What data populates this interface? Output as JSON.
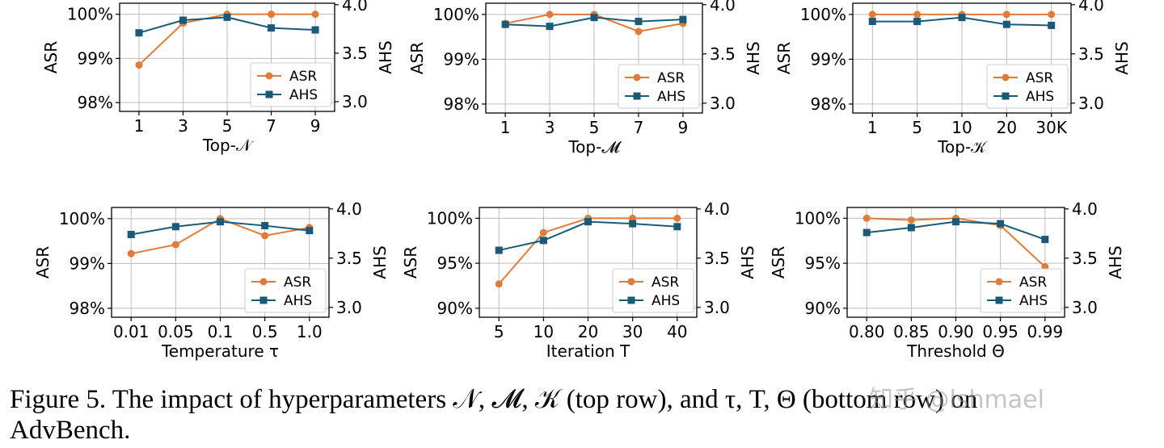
{
  "colors": {
    "asr": "#E07B39",
    "ahs": "#1A5A78",
    "grid": "#bdbdbd",
    "axis": "#000000"
  },
  "chart_data": [
    {
      "type": "line",
      "xlabel": "Top-𝒩",
      "ylabel_left": "ASR",
      "ylabel_right": "AHS",
      "categories": [
        "1",
        "3",
        "5",
        "7",
        "9"
      ],
      "y_left_ticks": [
        "98%",
        "99%",
        "100%"
      ],
      "y_left_range": [
        97.8,
        100.25
      ],
      "y_right_ticks": [
        "3.0",
        "3.5",
        "4.0"
      ],
      "y_right_range": [
        2.9,
        4.015
      ],
      "legend": "lower-right",
      "series": [
        {
          "name": "ASR",
          "axis": "left",
          "marker": "circle",
          "values": [
            98.85,
            99.8,
            100,
            100,
            100
          ]
        },
        {
          "name": "AHS",
          "axis": "right",
          "marker": "square",
          "values": [
            3.71,
            3.84,
            3.87,
            3.76,
            3.74
          ]
        }
      ]
    },
    {
      "type": "line",
      "xlabel": "Top-𝓜",
      "ylabel_left": "ASR",
      "ylabel_right": "AHS",
      "categories": [
        "1",
        "3",
        "5",
        "7",
        "9"
      ],
      "y_left_ticks": [
        "98%",
        "99%",
        "100%"
      ],
      "y_left_range": [
        97.8,
        100.25
      ],
      "y_right_ticks": [
        "3.0",
        "3.5",
        "4.0"
      ],
      "y_right_range": [
        2.9,
        4.015
      ],
      "legend": "lower-right",
      "series": [
        {
          "name": "ASR",
          "axis": "left",
          "marker": "circle",
          "values": [
            99.8,
            100,
            100,
            99.62,
            99.8
          ]
        },
        {
          "name": "AHS",
          "axis": "right",
          "marker": "square",
          "values": [
            3.8,
            3.78,
            3.87,
            3.83,
            3.85
          ]
        }
      ]
    },
    {
      "type": "line",
      "xlabel": "Top-𝒦",
      "ylabel_left": "ASR",
      "ylabel_right": "AHS",
      "categories": [
        "1",
        "5",
        "10",
        "20",
        "30K"
      ],
      "y_left_ticks": [
        "98%",
        "99%",
        "100%"
      ],
      "y_left_range": [
        97.8,
        100.25
      ],
      "y_right_ticks": [
        "3.0",
        "3.5",
        "4.0"
      ],
      "y_right_range": [
        2.9,
        4.015
      ],
      "legend": "lower-right",
      "series": [
        {
          "name": "ASR",
          "axis": "left",
          "marker": "circle",
          "values": [
            100,
            100,
            100,
            100,
            100
          ]
        },
        {
          "name": "AHS",
          "axis": "right",
          "marker": "square",
          "values": [
            3.83,
            3.83,
            3.87,
            3.8,
            3.79
          ]
        }
      ]
    },
    {
      "type": "line",
      "xlabel": "Temperature τ",
      "ylabel_left": "ASR",
      "ylabel_right": "AHS",
      "categories": [
        "0.01",
        "0.05",
        "0.1",
        "0.5",
        "1.0"
      ],
      "y_left_ticks": [
        "98%",
        "99%",
        "100%"
      ],
      "y_left_range": [
        97.8,
        100.25
      ],
      "y_right_ticks": [
        "3.0",
        "3.5",
        "4.0"
      ],
      "y_right_range": [
        2.9,
        4.015
      ],
      "legend": "lower-right",
      "series": [
        {
          "name": "ASR",
          "axis": "left",
          "marker": "circle",
          "values": [
            99.22,
            99.42,
            100,
            99.62,
            99.8
          ]
        },
        {
          "name": "AHS",
          "axis": "right",
          "marker": "square",
          "values": [
            3.74,
            3.82,
            3.87,
            3.83,
            3.78
          ]
        }
      ]
    },
    {
      "type": "line",
      "xlabel": "Iteration T",
      "ylabel_left": "ASR",
      "ylabel_right": "AHS",
      "categories": [
        "5",
        "10",
        "20",
        "30",
        "40"
      ],
      "y_left_ticks": [
        "90%",
        "95%",
        "100%"
      ],
      "y_left_range": [
        89,
        101.2
      ],
      "y_right_ticks": [
        "3.0",
        "3.5",
        "4.0"
      ],
      "y_right_range": [
        2.9,
        4.015
      ],
      "legend": "lower-right",
      "series": [
        {
          "name": "ASR",
          "axis": "left",
          "marker": "circle",
          "values": [
            92.7,
            98.4,
            100,
            100,
            100
          ]
        },
        {
          "name": "AHS",
          "axis": "right",
          "marker": "square",
          "values": [
            3.58,
            3.68,
            3.87,
            3.85,
            3.82
          ]
        }
      ]
    },
    {
      "type": "line",
      "xlabel": "Threshold Θ",
      "ylabel_left": "ASR",
      "ylabel_right": "AHS",
      "categories": [
        "0.80",
        "0.85",
        "0.90",
        "0.95",
        "0.99"
      ],
      "y_left_ticks": [
        "90%",
        "95%",
        "100%"
      ],
      "y_left_range": [
        89,
        101.2
      ],
      "y_right_ticks": [
        "3.0",
        "3.5",
        "4.0"
      ],
      "y_right_range": [
        2.9,
        4.015
      ],
      "legend": "lower-right",
      "series": [
        {
          "name": "ASR",
          "axis": "left",
          "marker": "circle",
          "values": [
            100,
            99.8,
            100,
            99.2,
            94.6
          ]
        },
        {
          "name": "AHS",
          "axis": "right",
          "marker": "square",
          "values": [
            3.76,
            3.81,
            3.87,
            3.85,
            3.69
          ]
        }
      ]
    }
  ],
  "caption": {
    "line1": "Figure 5.  The impact of hyperparameters 𝒩, 𝓜, 𝒦 (top row), and τ, T, Θ (bottom row) on",
    "line2": "AdvBench."
  },
  "watermark": "知乎 @lshmael"
}
